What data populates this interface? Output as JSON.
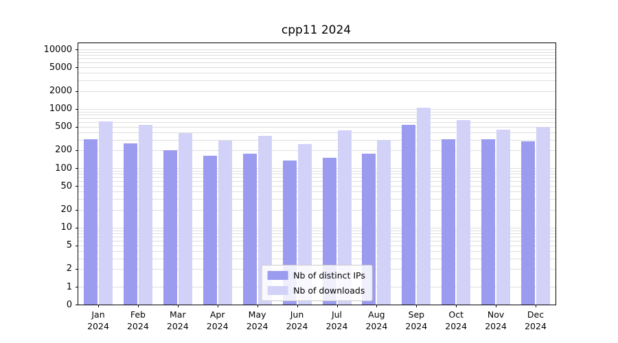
{
  "chart_data": {
    "type": "bar",
    "title": "cpp11 2024",
    "categories": [
      "Jan",
      "Feb",
      "Mar",
      "Apr",
      "May",
      "Jun",
      "Jul",
      "Aug",
      "Sep",
      "Oct",
      "Nov",
      "Dec"
    ],
    "year_label": "2024",
    "series": [
      {
        "name": "Nb of distinct IPs",
        "color": "#9b9bef",
        "values": [
          310,
          260,
          200,
          160,
          175,
          135,
          150,
          175,
          540,
          305,
          310,
          285
        ]
      },
      {
        "name": "Nb of downloads",
        "color": "#d2d2f9",
        "values": [
          620,
          540,
          390,
          290,
          350,
          255,
          430,
          300,
          1050,
          650,
          450,
          500
        ]
      }
    ],
    "y_ticks": [
      0,
      1,
      2,
      5,
      10,
      20,
      50,
      100,
      200,
      500,
      1000,
      2000,
      5000,
      10000
    ],
    "y_scale": "symlog",
    "ylim": [
      0,
      10000
    ],
    "grid": true,
    "legend_position": "lower center"
  }
}
